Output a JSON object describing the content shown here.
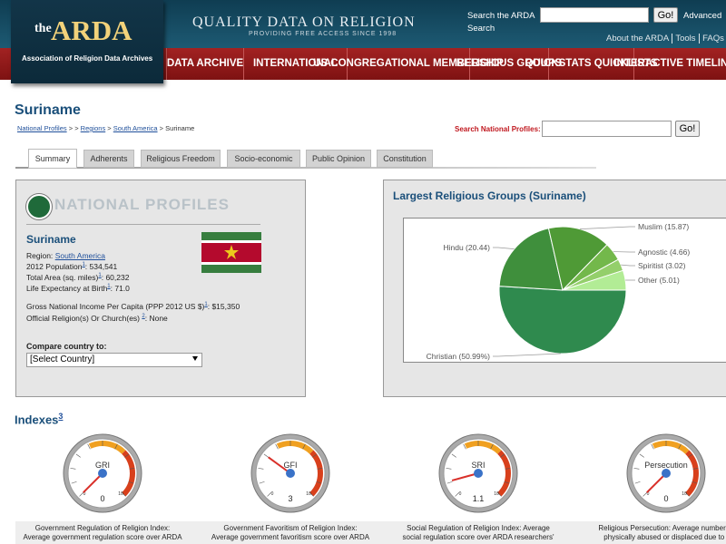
{
  "header": {
    "logo_the": "the",
    "logo_name": "ARDA",
    "logo_subtitle": "Association of Religion Data Archives",
    "tagline": "QUALITY DATA ON RELIGION",
    "tagline_sub": "PROVIDING FREE ACCESS SINCE 1998",
    "search_label": "Search the ARDA",
    "search_button": "Go!",
    "advanced": "Advanced",
    "search_word": "Search",
    "links": [
      "About the ARDA",
      "Tools",
      "FAQs"
    ]
  },
  "nav": [
    "DATA ARCHIVE",
    "INTERNATIONAL",
    "US CONGREGATIONAL MEMBERSHIP",
    "RELIGIOUS GROUPS",
    "QUICKSTATS QUICKLISTS",
    "INTERACTIVE TIMELINES"
  ],
  "page": {
    "title": "Suriname",
    "breadcrumb": [
      "National Profiles",
      ">",
      ">",
      "Regions",
      ">",
      "South America",
      ">",
      "Suriname"
    ],
    "search_label": "Search National Profiles:",
    "search_button": "Go!",
    "tabs": [
      "Summary",
      "Adherents",
      "Religious Freedom",
      "Socio-economic",
      "Public Opinion",
      "Constitution"
    ]
  },
  "profile": {
    "banner": "NATIONAL PROFILES",
    "country": "Suriname",
    "region_label": "Region:",
    "region": "South America",
    "facts": [
      {
        "label": "2012 Population",
        "note": "1",
        "value": ": 534,541"
      },
      {
        "label": "Total Area (sq. miles)",
        "note": "1",
        "value": ": 60,232"
      },
      {
        "label": "Life Expectancy at Birth",
        "note": "1",
        "value": ": 71.0"
      },
      {
        "label": "Gross National Income Per Capita (PPP 2012 US $)",
        "note": "1",
        "value": ": $15,350"
      },
      {
        "label": "Official Religion(s) Or Church(es) ",
        "note": "2",
        "value": ": None"
      }
    ],
    "compare_label": "Compare country to:",
    "compare_select": "[Select Country]"
  },
  "chart_data": {
    "type": "pie",
    "title": "Largest Religious Groups (Suriname)",
    "categories": [
      "Christian (50.99%)",
      "Hindu (20.44)",
      "Muslim (15.87)",
      "Agnostic (4.66)",
      "Spiritist (3.02)",
      "Other (5.01)"
    ],
    "values": [
      50.99,
      20.44,
      15.87,
      4.66,
      3.02,
      5.01
    ],
    "colors": [
      "#2f8a4e",
      "#3f8f3c",
      "#4f9a36",
      "#73b84b",
      "#94cf6b",
      "#b2ec95"
    ]
  },
  "indexes": {
    "title": "Indexes",
    "note": "3",
    "scale": {
      "min": 0,
      "max": 10
    },
    "gauges": [
      {
        "label": "GRI",
        "value": 0,
        "caption": [
          "Government Regulation of Religion Index:",
          "Average government regulation score over ARDA"
        ]
      },
      {
        "label": "GFI",
        "value": 3,
        "caption": [
          "Government Favoritism of Religion Index:",
          "Average government favoritism score over ARDA"
        ]
      },
      {
        "label": "SRI",
        "value": 1.1,
        "caption": [
          "Social Regulation of Religion Index: Average",
          "social regulation score over ARDA researchers'"
        ]
      },
      {
        "label": "Persecution",
        "value": 0,
        "caption": [
          "Religious Persecution: Average number of",
          "physically abused or displaced due to t"
        ]
      }
    ]
  }
}
